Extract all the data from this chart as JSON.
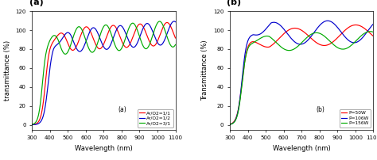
{
  "panel_a": {
    "title": "(a)",
    "xlabel": "Wavelength (nm)",
    "ylabel": "transmittance (%)",
    "xlim": [
      300,
      1100
    ],
    "ylim": [
      -5,
      120
    ],
    "yticks": [
      0,
      20,
      40,
      60,
      80,
      100,
      120
    ],
    "xticks": [
      300,
      400,
      500,
      600,
      700,
      800,
      900,
      1000,
      1100
    ],
    "legend_labels": [
      "Ar/O2=1/1",
      "Ar/O2=1/2",
      "Ar/O2=3/1"
    ],
    "line_colors": [
      "#ff0000",
      "#0000cc",
      "#00aa00"
    ]
  },
  "panel_b": {
    "title": "(b)",
    "xlabel": "Wavelength (nm)",
    "ylabel": "Transmittance (%)",
    "xlim": [
      300,
      1100
    ],
    "ylim": [
      -5,
      120
    ],
    "yticks": [
      0,
      20,
      40,
      60,
      80,
      100,
      120
    ],
    "xticks": [
      300,
      400,
      500,
      600,
      700,
      800,
      900,
      1000,
      1100
    ],
    "legend_labels": [
      "P=50W",
      "P=106W",
      "P=156W"
    ],
    "line_colors": [
      "#ff0000",
      "#0000cc",
      "#00aa00"
    ]
  },
  "background_color": "#ffffff",
  "figsize": [
    4.74,
    2.02
  ],
  "dpi": 100
}
